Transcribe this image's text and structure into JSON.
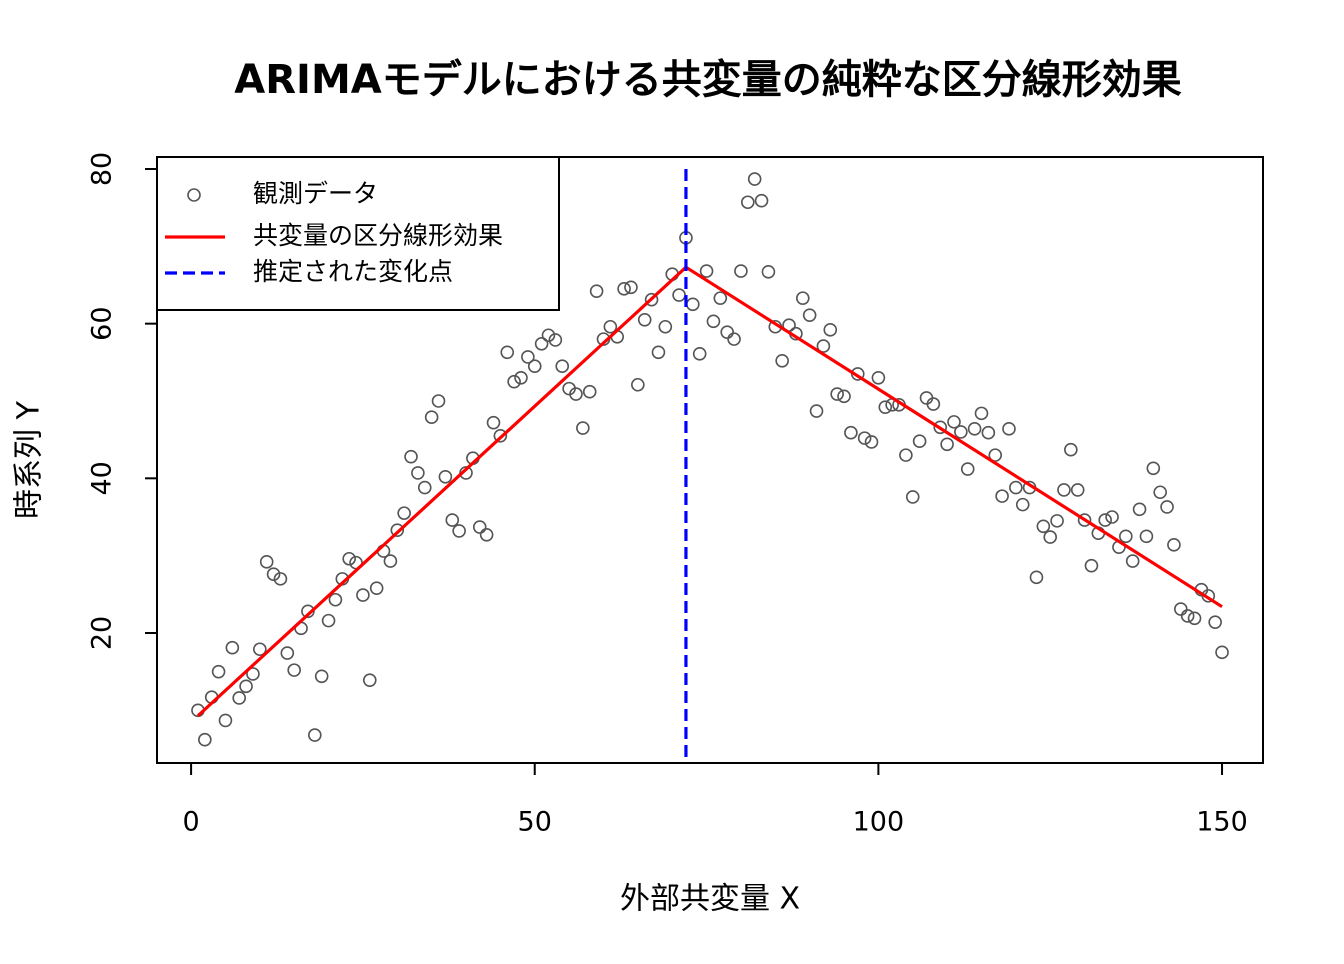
{
  "chart_data": {
    "type": "scatter",
    "title": "ARIMAモデルにおける共変量の純粋な区分線形効果",
    "x_label": "外部共変量 X",
    "y_label": "時系列 Y",
    "xlim": [
      -4.96,
      155.96
    ],
    "ylim": [
      3.19,
      81.55
    ],
    "xticks": [
      0,
      50,
      100,
      150
    ],
    "yticks": [
      20,
      40,
      60,
      80
    ],
    "legend": "top-left",
    "series": [
      {
        "name": "観測データ",
        "type": "scatter",
        "color": "#555555",
        "x": [
          1,
          2,
          3,
          4,
          5,
          6,
          7,
          8,
          9,
          10,
          11,
          12,
          13,
          14,
          15,
          16,
          17,
          18,
          19,
          20,
          21,
          22,
          23,
          24,
          25,
          26,
          27,
          28,
          29,
          30,
          31,
          32,
          33,
          34,
          35,
          36,
          37,
          38,
          39,
          40,
          41,
          42,
          43,
          44,
          45,
          46,
          47,
          48,
          49,
          50,
          51,
          52,
          53,
          54,
          55,
          56,
          57,
          58,
          59,
          60,
          61,
          62,
          63,
          64,
          65,
          66,
          67,
          68,
          69,
          70,
          71,
          72,
          73,
          74,
          75,
          76,
          77,
          78,
          79,
          80,
          81,
          82,
          83,
          84,
          85,
          86,
          87,
          88,
          89,
          90,
          91,
          92,
          93,
          94,
          95,
          96,
          97,
          98,
          99,
          100,
          101,
          102,
          103,
          104,
          105,
          106,
          107,
          108,
          109,
          110,
          111,
          112,
          113,
          114,
          115,
          116,
          117,
          118,
          119,
          120,
          121,
          122,
          123,
          124,
          125,
          126,
          127,
          128,
          129,
          130,
          131,
          132,
          133,
          134,
          135,
          136,
          137,
          138,
          139,
          140,
          141,
          142,
          143,
          144,
          145,
          146,
          147,
          148,
          149,
          150
        ],
        "values": [
          10.0,
          6.2,
          11.7,
          15.0,
          8.7,
          18.1,
          11.6,
          13.1,
          14.7,
          17.9,
          29.2,
          27.6,
          27.0,
          17.4,
          15.2,
          20.6,
          22.8,
          6.8,
          14.4,
          21.6,
          24.3,
          27.0,
          29.6,
          29.1,
          24.9,
          13.9,
          25.8,
          30.6,
          29.3,
          33.3,
          35.5,
          42.8,
          40.7,
          38.8,
          47.9,
          50.0,
          40.2,
          34.6,
          33.2,
          40.7,
          42.6,
          33.7,
          32.7,
          47.2,
          45.5,
          56.3,
          52.5,
          53.0,
          55.7,
          54.5,
          57.4,
          58.5,
          57.9,
          54.5,
          51.6,
          50.9,
          46.5,
          51.2,
          64.2,
          58.0,
          59.6,
          58.3,
          64.5,
          64.7,
          52.1,
          60.5,
          63.1,
          56.3,
          59.6,
          66.4,
          63.7,
          71.1,
          62.5,
          56.1,
          66.8,
          60.3,
          63.3,
          58.9,
          58.0,
          66.8,
          75.7,
          78.7,
          75.9,
          66.7,
          59.6,
          55.2,
          59.8,
          58.7,
          63.3,
          61.1,
          48.7,
          57.1,
          59.2,
          50.9,
          50.6,
          45.9,
          53.5,
          45.2,
          44.7,
          53.0,
          49.2,
          49.5,
          49.5,
          43.0,
          37.6,
          44.8,
          50.4,
          49.6,
          46.6,
          44.4,
          47.3,
          46.0,
          41.2,
          46.4,
          48.4,
          45.9,
          43.0,
          37.7,
          46.4,
          38.8,
          36.6,
          38.8,
          27.2,
          33.8,
          32.4,
          34.5,
          38.5,
          43.7,
          38.5,
          34.6,
          28.7,
          32.9,
          34.6,
          35.0,
          31.1,
          32.5,
          29.3,
          36.0,
          32.5,
          41.3,
          38.2,
          36.3,
          31.4,
          23.1,
          22.2,
          21.9,
          25.6,
          24.8,
          21.4,
          17.5
        ]
      },
      {
        "name": "共変量の区分線形効果",
        "type": "line",
        "color": "#ff0000",
        "x": [
          1,
          72,
          150
        ],
        "values": [
          9.3,
          67.3,
          23.4
        ]
      }
    ],
    "changepoint": {
      "name": "推定された変化点",
      "x": 72,
      "color": "#0000ff"
    }
  }
}
